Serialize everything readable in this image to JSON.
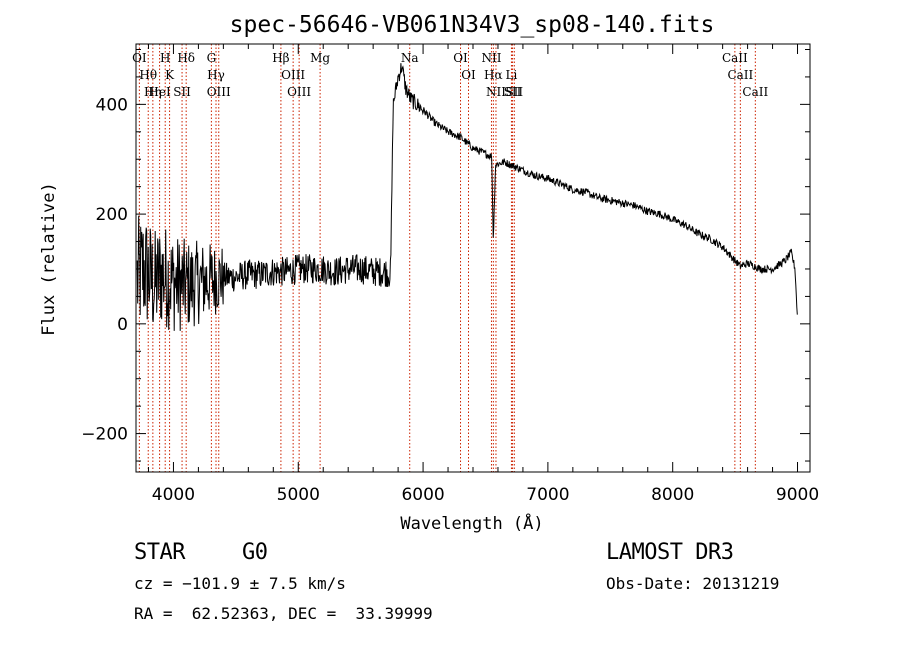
{
  "chart_data": {
    "type": "line",
    "title": "spec-56646-VB061N34V3_sp08-140.fits",
    "xlabel": "Wavelength (Å)",
    "ylabel": "Flux (relative)",
    "xlim": [
      3700,
      9100
    ],
    "ylim": [
      -270,
      510
    ],
    "xticks": [
      4000,
      5000,
      6000,
      7000,
      8000,
      9000
    ],
    "xtick_labels": [
      "4000",
      "5000",
      "6000",
      "7000",
      "8000",
      "9000"
    ],
    "yticks": [
      -200,
      0,
      200,
      400
    ],
    "ytick_labels": [
      "−200",
      "0",
      "200",
      "400"
    ],
    "series": [
      {
        "name": "flux",
        "x": [
          3710,
          3760,
          3800,
          3850,
          3900,
          3950,
          4000,
          4100,
          4200,
          4300,
          4400,
          4500,
          4600,
          4700,
          4800,
          4900,
          5000,
          5100,
          5200,
          5300,
          5400,
          5500,
          5600,
          5700,
          5740,
          5760,
          5800,
          5830,
          5860,
          5900,
          6000,
          6100,
          6200,
          6300,
          6400,
          6500,
          6550,
          6563,
          6580,
          6650,
          6700,
          6800,
          6900,
          7000,
          7100,
          7200,
          7300,
          7400,
          7500,
          7600,
          7700,
          7800,
          7900,
          8000,
          8100,
          8200,
          8300,
          8400,
          8500,
          8540,
          8600,
          8660,
          8700,
          8800,
          8900,
          8950,
          8980,
          9000
        ],
        "y": [
          80,
          100,
          90,
          70,
          90,
          85,
          75,
          70,
          75,
          80,
          85,
          85,
          90,
          90,
          95,
          95,
          100,
          100,
          100,
          95,
          100,
          100,
          95,
          95,
          90,
          400,
          450,
          470,
          430,
          410,
          390,
          365,
          350,
          340,
          320,
          310,
          305,
          150,
          290,
          295,
          290,
          280,
          270,
          265,
          255,
          245,
          240,
          230,
          225,
          220,
          215,
          205,
          200,
          190,
          180,
          165,
          155,
          140,
          115,
          105,
          110,
          105,
          100,
          100,
          115,
          130,
          100,
          5
        ]
      }
    ],
    "line_markers": [
      {
        "label": "OI",
        "x": 3727
      },
      {
        "label": "Hθ",
        "x": 3798
      },
      {
        "label": "Hη",
        "x": 3835
      },
      {
        "label": "HeI",
        "x": 3889
      },
      {
        "label": "H",
        "x": 3934
      },
      {
        "label": "K",
        "x": 3969
      },
      {
        "label": "SII",
        "x": 4069
      },
      {
        "label": "Hδ",
        "x": 4102
      },
      {
        "label": "G",
        "x": 4304
      },
      {
        "label": "Hγ",
        "x": 4341
      },
      {
        "label": "OIII",
        "x": 4363
      },
      {
        "label": "Hβ",
        "x": 4861
      },
      {
        "label": "OIII",
        "x": 4959
      },
      {
        "label": "OIII",
        "x": 5007
      },
      {
        "label": "Mg",
        "x": 5175
      },
      {
        "label": "Na",
        "x": 5893
      },
      {
        "label": "OI",
        "x": 6300
      },
      {
        "label": "OI",
        "x": 6364
      },
      {
        "label": "NII",
        "x": 6548
      },
      {
        "label": "Hα",
        "x": 6563
      },
      {
        "label": "NII",
        "x": 6584
      },
      {
        "label": "Li",
        "x": 6708
      },
      {
        "label": "SII",
        "x": 6717
      },
      {
        "label": "SII",
        "x": 6731
      },
      {
        "label": "CaII",
        "x": 8498
      },
      {
        "label": "CaII",
        "x": 8542
      },
      {
        "label": "CaII",
        "x": 8662
      }
    ],
    "line_color": "#000000",
    "marker_color": "#cc2200"
  },
  "info": {
    "object_class": "STAR",
    "subclass": "G0",
    "survey": "LAMOST DR3",
    "redshift": "cz = −101.9 ± 7.5 km/s",
    "obs_date": "Obs-Date: 20131219",
    "coords": "RA =  62.52363, DEC =  33.39999"
  }
}
